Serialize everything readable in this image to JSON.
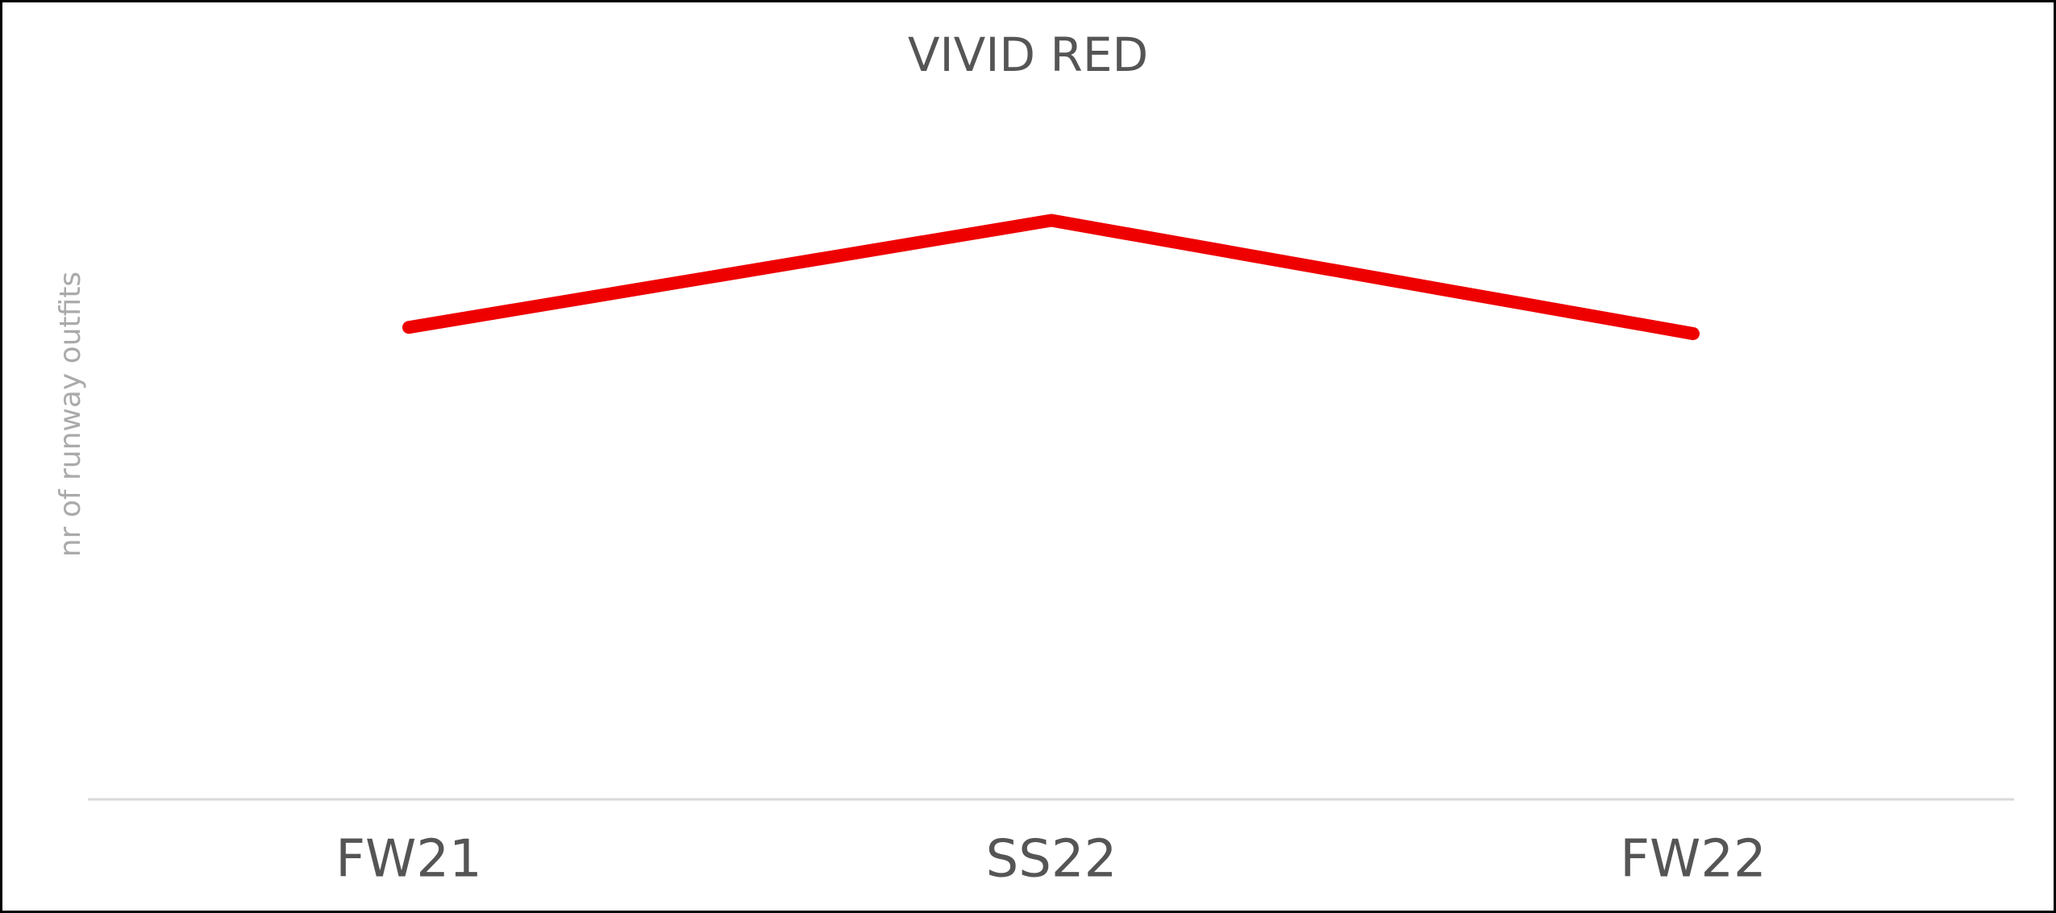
{
  "chart_data": {
    "type": "line",
    "title": "VIVID RED",
    "y_label": "nr of runway outfits",
    "categories": [
      "FW21",
      "SS22",
      "FW22"
    ],
    "series": [
      {
        "name": "VIVID RED",
        "color": "#ee0000",
        "values": [
          75,
          92,
          74
        ]
      }
    ],
    "ylim": [
      0,
      100
    ]
  }
}
